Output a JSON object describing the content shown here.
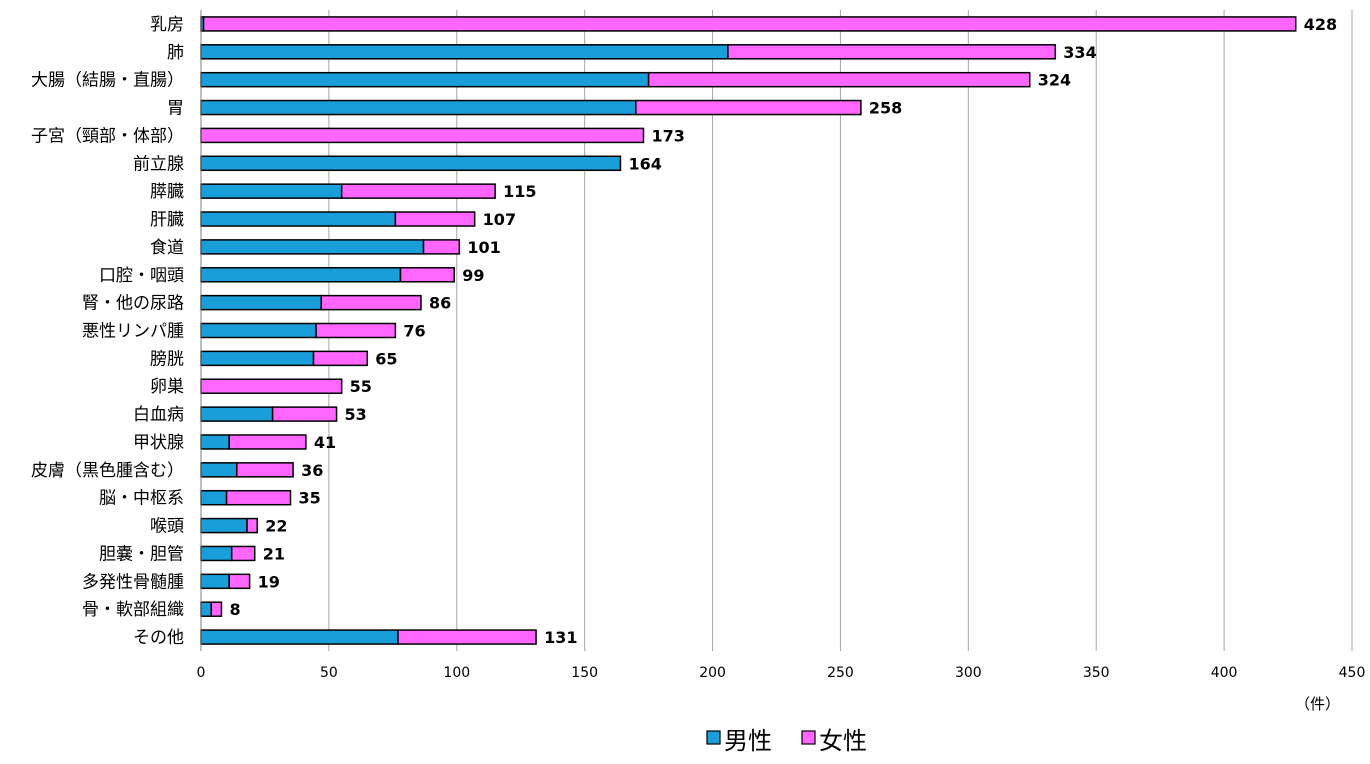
{
  "chart_data": {
    "type": "bar",
    "orientation": "horizontal",
    "stacked": true,
    "title": "",
    "xlabel": "",
    "ylabel": "",
    "unit_label": "（件）",
    "xlim": [
      0,
      450
    ],
    "xticks": [
      0,
      50,
      100,
      150,
      200,
      250,
      300,
      350,
      400,
      450
    ],
    "grid": true,
    "legend_position": "bottom",
    "categories": [
      "乳房",
      "肺",
      "大腸（結腸・直腸）",
      "胃",
      "子宮（頸部・体部）",
      "前立腺",
      "膵臓",
      "肝臓",
      "食道",
      "口腔・咽頭",
      "腎・他の尿路",
      "悪性リンパ腫",
      "膀胱",
      "卵巣",
      "白血病",
      "甲状腺",
      "皮膚（黒色腫含む）",
      "脳・中枢系",
      "喉頭",
      "胆嚢・胆管",
      "多発性骨髄腫",
      "骨・軟部組織",
      "その他"
    ],
    "series": [
      {
        "name": "男性",
        "color": "#1a9ed9",
        "values": [
          1,
          206,
          175,
          170,
          0,
          164,
          55,
          76,
          87,
          78,
          47,
          45,
          44,
          0,
          28,
          11,
          14,
          10,
          18,
          12,
          11,
          4,
          77
        ]
      },
      {
        "name": "女性",
        "color": "#ff66ff",
        "values": [
          427,
          128,
          149,
          88,
          173,
          0,
          60,
          31,
          14,
          21,
          39,
          31,
          21,
          55,
          25,
          30,
          22,
          25,
          4,
          9,
          8,
          4,
          54
        ]
      }
    ],
    "totals": [
      428,
      334,
      324,
      258,
      173,
      164,
      115,
      107,
      101,
      99,
      86,
      76,
      65,
      55,
      53,
      41,
      36,
      35,
      22,
      21,
      19,
      8,
      131
    ]
  }
}
